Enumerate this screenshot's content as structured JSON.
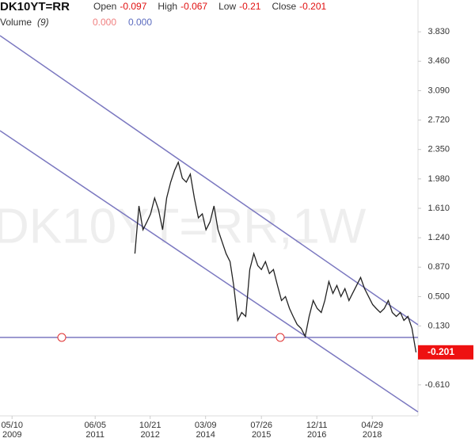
{
  "chart_data": {
    "type": "line",
    "title": "DK10YT=RR",
    "watermark": "DK10YT=RR,1W",
    "ohlc": [
      {
        "label": "Open",
        "value": -0.097
      },
      {
        "label": "High",
        "value": -0.067
      },
      {
        "label": "Low",
        "value": -0.21
      },
      {
        "label": "Close",
        "value": -0.201
      }
    ],
    "volume": {
      "label": "Volume",
      "param": "(9)",
      "values": [
        {
          "text": "0.000",
          "color": "#f08080"
        },
        {
          "text": "0.000",
          "color": "#5b6bbf"
        }
      ]
    },
    "last_price": -0.201,
    "last_price_color": "#ee1111",
    "xlim": [
      2009.06,
      2019.47
    ],
    "ylim": [
      -1.0,
      4.23
    ],
    "yticks": [
      {
        "value": 3.83,
        "label": "3.830"
      },
      {
        "value": 3.46,
        "label": "3.460"
      },
      {
        "value": 3.09,
        "label": "3.090"
      },
      {
        "value": 2.72,
        "label": "2.720"
      },
      {
        "value": 2.35,
        "label": "2.350"
      },
      {
        "value": 1.98,
        "label": "1.980"
      },
      {
        "value": 1.61,
        "label": "1.610"
      },
      {
        "value": 1.24,
        "label": "1.240"
      },
      {
        "value": 0.87,
        "label": "0.870"
      },
      {
        "value": 0.5,
        "label": "0.500"
      },
      {
        "value": 0.13,
        "label": "0.130"
      },
      {
        "value": -0.61,
        "label": "-0.610"
      }
    ],
    "xticks": [
      {
        "value": 2009.36,
        "label": "05/10",
        "year": "2009"
      },
      {
        "value": 2011.43,
        "label": "06/05",
        "year": "2011"
      },
      {
        "value": 2012.8,
        "label": "10/21",
        "year": "2012"
      },
      {
        "value": 2014.18,
        "label": "03/09",
        "year": "2014"
      },
      {
        "value": 2015.57,
        "label": "07/26",
        "year": "2015"
      },
      {
        "value": 2016.95,
        "label": "12/11",
        "year": "2016"
      },
      {
        "value": 2018.33,
        "label": "04/29",
        "year": "2018"
      }
    ],
    "series": [
      {
        "color": "#222222",
        "x": [
          2012.42,
          2012.52,
          2012.62,
          2012.72,
          2012.81,
          2012.91,
          2013.01,
          2013.11,
          2013.21,
          2013.31,
          2013.41,
          2013.5,
          2013.6,
          2013.7,
          2013.8,
          2013.9,
          2014.0,
          2014.1,
          2014.19,
          2014.29,
          2014.39,
          2014.49,
          2014.59,
          2014.69,
          2014.79,
          2014.88,
          2014.98,
          2015.08,
          2015.18,
          2015.28,
          2015.38,
          2015.48,
          2015.57,
          2015.67,
          2015.77,
          2015.87,
          2015.97,
          2016.07,
          2016.17,
          2016.27,
          2016.36,
          2016.46,
          2016.56,
          2016.66,
          2016.76,
          2016.86,
          2016.96,
          2017.06,
          2017.15,
          2017.25,
          2017.35,
          2017.45,
          2017.55,
          2017.65,
          2017.75,
          2017.84,
          2017.94,
          2018.04,
          2018.14,
          2018.24,
          2018.34,
          2018.43,
          2018.53,
          2018.63,
          2018.73,
          2018.83,
          2018.93,
          2019.03,
          2019.12,
          2019.22,
          2019.32,
          2019.42
        ],
        "values": [
          1.04,
          1.64,
          1.34,
          1.44,
          1.54,
          1.74,
          1.59,
          1.34,
          1.74,
          1.94,
          2.09,
          2.19,
          1.99,
          1.94,
          2.04,
          1.74,
          1.49,
          1.54,
          1.34,
          1.44,
          1.64,
          1.34,
          1.19,
          1.04,
          0.94,
          0.64,
          0.2,
          0.3,
          0.25,
          0.84,
          1.04,
          0.89,
          0.84,
          0.94,
          0.79,
          0.84,
          0.64,
          0.45,
          0.5,
          0.35,
          0.25,
          0.15,
          0.1,
          0.0,
          0.25,
          0.45,
          0.35,
          0.3,
          0.45,
          0.69,
          0.54,
          0.64,
          0.5,
          0.6,
          0.45,
          0.54,
          0.64,
          0.74,
          0.6,
          0.5,
          0.4,
          0.35,
          0.3,
          0.35,
          0.45,
          0.3,
          0.25,
          0.3,
          0.2,
          0.25,
          0.1,
          -0.201
        ]
      }
    ]
  }
}
